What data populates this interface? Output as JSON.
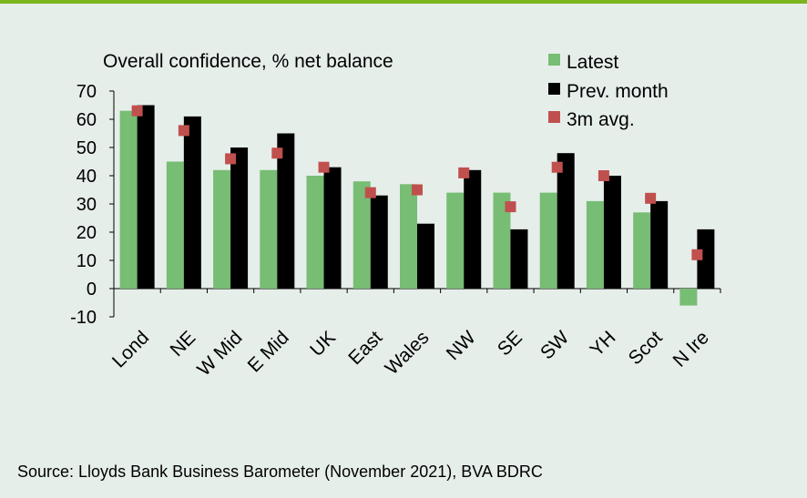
{
  "colors": {
    "background": "#e6eeea",
    "accent_rule": "#7ab51d",
    "latest": "#77bd73",
    "prev": "#000000",
    "avg": "#c0504d"
  },
  "source": "Source: Lloyds Bank Business Barometer (November 2021), BVA BDRC",
  "chart_data": {
    "type": "bar",
    "title": "Overall confidence, % net balance",
    "ylim": [
      -10,
      70
    ],
    "yticks": [
      -10,
      0,
      10,
      20,
      30,
      40,
      50,
      60,
      70
    ],
    "categories": [
      "Lond",
      "NE",
      "W Mid",
      "E Mid",
      "UK",
      "East",
      "Wales",
      "NW",
      "SE",
      "SW",
      "YH",
      "Scot",
      "N Ire"
    ],
    "series": [
      {
        "name": "Latest",
        "kind": "bar",
        "values": [
          63,
          45,
          42,
          42,
          40,
          38,
          37,
          34,
          34,
          34,
          31,
          27,
          -6
        ]
      },
      {
        "name": "Prev. month",
        "kind": "bar",
        "values": [
          65,
          61,
          50,
          55,
          43,
          33,
          23,
          42,
          21,
          48,
          40,
          31,
          21
        ]
      },
      {
        "name": "3m avg.",
        "kind": "marker",
        "values": [
          63,
          56,
          46,
          48,
          43,
          34,
          35,
          41,
          29,
          43,
          40,
          32,
          12
        ]
      }
    ],
    "grid": false,
    "legend_position": "top-right"
  }
}
